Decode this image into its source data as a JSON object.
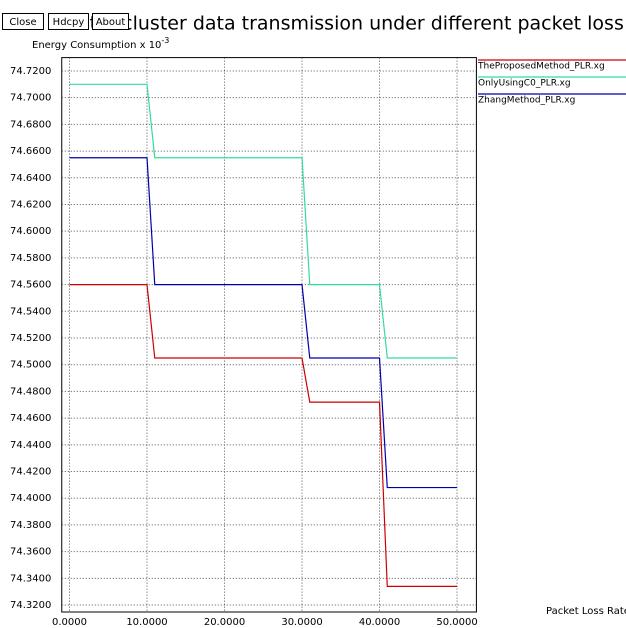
{
  "toolbar": [
    "Close",
    "Hdcpy",
    "About"
  ],
  "chart_data": {
    "type": "line",
    "title": "ison in inter-cluster data transmission under different packet loss rates",
    "y_label": "Energy Consumption x 10",
    "y_label_exponent": "-3",
    "x_label": "Packet Loss Rate",
    "x": [
      0,
      10,
      11,
      30,
      31,
      40,
      41,
      50
    ],
    "series": [
      {
        "name": "TheProposedMethod_PLR.xg",
        "color": "#cc0000",
        "values": [
          74.56,
          74.56,
          74.505,
          74.505,
          74.472,
          74.472,
          74.334,
          74.334
        ]
      },
      {
        "name": "OnlyUsingC0_PLR.xg",
        "color": "#33dd99",
        "values": [
          74.71,
          74.71,
          74.655,
          74.655,
          74.56,
          74.56,
          74.505,
          74.505
        ]
      },
      {
        "name": "ZhangMethod_PLR.xg",
        "color": "#0000aa",
        "values": [
          74.655,
          74.655,
          74.56,
          74.56,
          74.505,
          74.505,
          74.408,
          74.408
        ]
      }
    ],
    "xlim": [
      -1,
      52.5
    ],
    "ylim": [
      74.31,
      74.73
    ],
    "xticks": [
      {
        "value": 0,
        "label": "0.0000"
      },
      {
        "value": 10,
        "label": "10.0000"
      },
      {
        "value": 20,
        "label": "20.0000"
      },
      {
        "value": 30,
        "label": "30.0000"
      },
      {
        "value": 40,
        "label": "40.0000"
      },
      {
        "value": 50,
        "label": "50.0000"
      }
    ],
    "yticks": [
      {
        "value": 74.72,
        "label": "74.7200"
      },
      {
        "value": 74.7,
        "label": "74.7000"
      },
      {
        "value": 74.68,
        "label": "74.6800"
      },
      {
        "value": 74.66,
        "label": "74.6600"
      },
      {
        "value": 74.64,
        "label": "74.6400"
      },
      {
        "value": 74.62,
        "label": "74.6200"
      },
      {
        "value": 74.6,
        "label": "74.6000"
      },
      {
        "value": 74.58,
        "label": "74.5800"
      },
      {
        "value": 74.56,
        "label": "74.5600"
      },
      {
        "value": 74.54,
        "label": "74.5400"
      },
      {
        "value": 74.52,
        "label": "74.5200"
      },
      {
        "value": 74.5,
        "label": "74.5000"
      },
      {
        "value": 74.48,
        "label": "74.4800"
      },
      {
        "value": 74.46,
        "label": "74.4600"
      },
      {
        "value": 74.44,
        "label": "74.4400"
      },
      {
        "value": 74.42,
        "label": "74.4200"
      },
      {
        "value": 74.4,
        "label": "74.4000"
      },
      {
        "value": 74.38,
        "label": "74.3800"
      },
      {
        "value": 74.36,
        "label": "74.3600"
      },
      {
        "value": 74.34,
        "label": "74.3400"
      },
      {
        "value": 74.32,
        "label": "74.3200"
      }
    ],
    "grid": true
  }
}
